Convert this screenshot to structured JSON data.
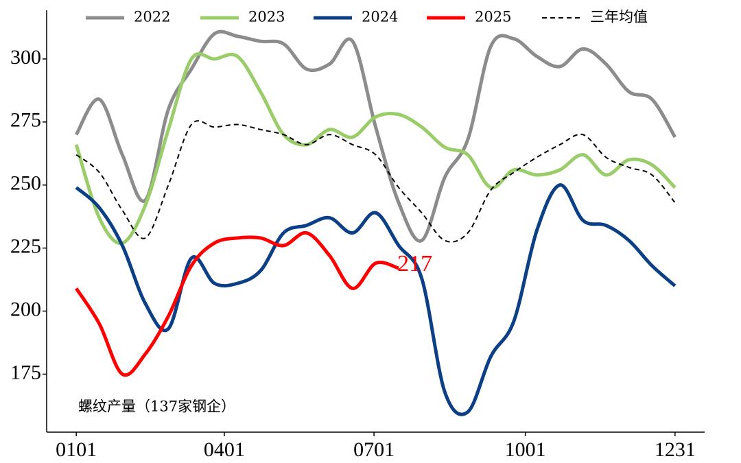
{
  "chart_data": {
    "type": "line",
    "annotation": "螺纹产量（137家钢企）",
    "x": [
      1,
      15,
      29,
      43,
      57,
      71,
      85,
      99,
      113,
      127,
      141,
      155,
      169,
      183,
      197,
      211,
      225,
      239,
      253,
      267,
      281,
      295,
      309,
      323,
      337,
      351,
      365
    ],
    "series": [
      {
        "name": "2022",
        "color": "#8c8c8c",
        "linestyle": "solid",
        "values": [
          270,
          284,
          262,
          244,
          280,
          296,
          310,
          309,
          307,
          306,
          296,
          298,
          307,
          273,
          243,
          228,
          253,
          268,
          305,
          308,
          301,
          297,
          304,
          298,
          287,
          284,
          269
        ]
      },
      {
        "name": "2023",
        "color": "#9acd6a",
        "linestyle": "solid",
        "values": [
          266,
          237,
          227,
          242,
          272,
          300,
          300,
          301,
          287,
          270,
          266,
          272,
          269,
          277,
          278,
          273,
          265,
          262,
          249,
          256,
          254,
          256,
          262,
          254,
          260,
          258,
          249
        ]
      },
      {
        "name": "2024",
        "color": "#0b3f86",
        "linestyle": "solid",
        "values": [
          249,
          241,
          226,
          203,
          193,
          221,
          211,
          211,
          216,
          231,
          234,
          237,
          231,
          239,
          226,
          213,
          168,
          160,
          182,
          196,
          232,
          250,
          236,
          234,
          228,
          218,
          210
        ]
      },
      {
        "name": "2025",
        "color": "#ff0000",
        "linestyle": "solid",
        "data_label": "last",
        "values": [
          209,
          195,
          175,
          183,
          198,
          218,
          227,
          229,
          229,
          226,
          231,
          222,
          209,
          219,
          217,
          null,
          null,
          null,
          null,
          null,
          null,
          null,
          null,
          null,
          null,
          null,
          null
        ]
      },
      {
        "name": "三年均值",
        "color": "#000000",
        "linestyle": "dashed",
        "values": [
          262,
          255,
          240,
          229,
          250,
          274,
          273,
          274,
          272,
          270,
          266,
          270,
          266,
          262,
          249,
          239,
          228,
          231,
          248,
          255,
          261,
          266,
          270,
          261,
          257,
          254,
          243
        ]
      }
    ],
    "xlim": [
      -17,
      383
    ],
    "xticks": [
      {
        "value": 1,
        "label": "0101"
      },
      {
        "value": 91,
        "label": "0401"
      },
      {
        "value": 182,
        "label": "0701"
      },
      {
        "value": 274,
        "label": "1001"
      },
      {
        "value": 365,
        "label": "1231"
      }
    ],
    "ylim": [
      152,
      319.3
    ],
    "yticks": [
      175,
      200,
      225,
      250,
      275,
      300
    ],
    "legend": "top"
  }
}
